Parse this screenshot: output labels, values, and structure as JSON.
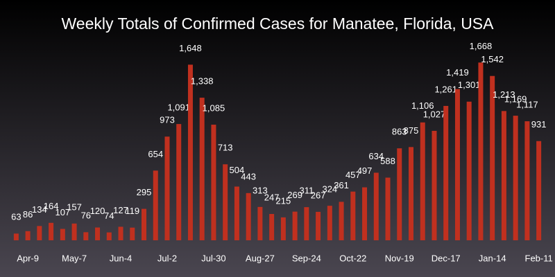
{
  "chart_data": {
    "type": "bar",
    "title": "Weekly Totals of Confirmed Cases for Manatee, Florida, USA",
    "categories": [
      null,
      "Apr-9",
      null,
      null,
      null,
      "May-7",
      null,
      null,
      null,
      "Jun-4",
      null,
      null,
      null,
      "Jul-2",
      null,
      null,
      null,
      "Jul-30",
      null,
      null,
      null,
      "Aug-27",
      null,
      null,
      null,
      "Sep-24",
      null,
      null,
      null,
      "Oct-22",
      null,
      null,
      null,
      "Nov-19",
      null,
      null,
      null,
      "Dec-17",
      null,
      null,
      null,
      "Jan-14",
      null,
      null,
      null,
      "Feb-11"
    ],
    "values": [
      63,
      86,
      134,
      164,
      107,
      157,
      76,
      120,
      74,
      127,
      119,
      295,
      654,
      973,
      1091,
      1648,
      1338,
      1085,
      713,
      504,
      443,
      313,
      247,
      215,
      269,
      311,
      267,
      324,
      361,
      457,
      497,
      634,
      588,
      863,
      875,
      1106,
      1027,
      1261,
      1419,
      1301,
      1668,
      1542,
      1213,
      1169,
      1117,
      931
    ],
    "value_labels": [
      "63",
      "86",
      "134",
      "164",
      "107",
      "157",
      "76",
      "120",
      "74",
      "127",
      "119",
      "295",
      "654",
      "973",
      "1,091",
      "1,648",
      "1,338",
      "1,085",
      "713",
      "504",
      "443",
      "313",
      "247",
      "215",
      "269",
      "311",
      "267",
      "324",
      "361",
      "457",
      "497",
      "634",
      "588",
      "863",
      "875",
      "1,106",
      "1,027",
      "1,261",
      "1,419",
      "1,301",
      "1,668",
      "1,542",
      "1,213",
      "1,169",
      "1,117",
      "931"
    ],
    "color": "#c0301f",
    "ylim": [
      0,
      1800
    ]
  }
}
